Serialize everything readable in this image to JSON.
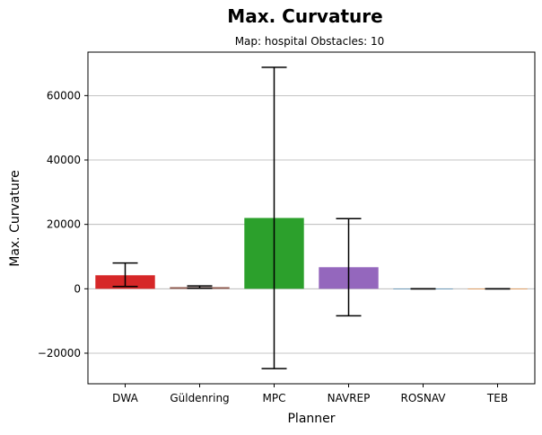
{
  "chart_data": {
    "type": "bar",
    "title": "Max. Curvature",
    "subtitle": "Map: hospital Obstacles: 10",
    "xlabel": "Planner",
    "ylabel": "Max. Curvature",
    "categories": [
      "DWA",
      "Güldenring",
      "MPC",
      "NAVREP",
      "ROSNAV",
      "TEB"
    ],
    "values": [
      4200,
      500,
      22000,
      6700,
      0,
      0
    ],
    "error_low": [
      700,
      200,
      -24800,
      -8400,
      0,
      0
    ],
    "error_high": [
      8000,
      900,
      68800,
      21800,
      0,
      0
    ],
    "colors": [
      "#d62728",
      "#8c564b",
      "#2ca02c",
      "#9467bd",
      "#1f77b4",
      "#ff7f0e"
    ],
    "ylim": [
      -29500,
      73500
    ],
    "yticks": [
      -20000,
      0,
      20000,
      40000,
      60000
    ],
    "ytick_labels": [
      "−20000",
      "0",
      "20000",
      "40000",
      "60000"
    ],
    "grid": "y",
    "legend": "none"
  }
}
